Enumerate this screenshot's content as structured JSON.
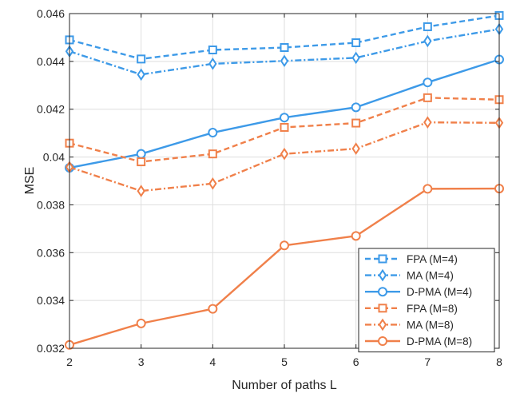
{
  "chart_data": {
    "type": "line",
    "title": "",
    "xlabel": "Number of paths L",
    "ylabel": "MSE",
    "xlim": [
      2,
      8
    ],
    "ylim": [
      0.032,
      0.046
    ],
    "grid": true,
    "legend_position": "bottom-right",
    "x": [
      2,
      3,
      4,
      5,
      6,
      7,
      8
    ],
    "x_ticks": [
      2,
      3,
      4,
      5,
      6,
      7,
      8
    ],
    "x_tick_labels": [
      "2",
      "3",
      "4",
      "5",
      "6",
      "7",
      "8"
    ],
    "y_ticks": [
      0.032,
      0.034,
      0.036,
      0.038,
      0.04,
      0.042,
      0.044,
      0.046
    ],
    "y_tick_labels": [
      "0.032",
      "0.034",
      "0.036",
      "0.038",
      "0.04",
      "0.042",
      "0.044",
      "0.046"
    ],
    "series": [
      {
        "name": "FPA (M=4)",
        "color": "#3d9ae8",
        "dash": "dashed",
        "marker": "square",
        "values": [
          0.0449,
          0.0441,
          0.04448,
          0.04458,
          0.04478,
          0.04545,
          0.04592
        ]
      },
      {
        "name": "MA (M=4)",
        "color": "#3d9ae8",
        "dash": "dashdot",
        "marker": "diamond",
        "values": [
          0.04442,
          0.04345,
          0.0439,
          0.04402,
          0.04415,
          0.04485,
          0.04535
        ]
      },
      {
        "name": "D-PMA (M=4)",
        "color": "#3d9ae8",
        "dash": "solid",
        "marker": "circle",
        "values": [
          0.03955,
          0.04013,
          0.04102,
          0.04165,
          0.04208,
          0.04312,
          0.04408
        ]
      },
      {
        "name": "FPA (M=8)",
        "color": "#f0804a",
        "dash": "dashed",
        "marker": "square",
        "values": [
          0.04058,
          0.0398,
          0.04013,
          0.04124,
          0.04142,
          0.04248,
          0.0424
        ]
      },
      {
        "name": "MA (M=8)",
        "color": "#f0804a",
        "dash": "dashdot",
        "marker": "diamond",
        "values": [
          0.03958,
          0.03858,
          0.03889,
          0.04013,
          0.04035,
          0.04145,
          0.04143
        ]
      },
      {
        "name": "D-PMA (M=8)",
        "color": "#f0804a",
        "dash": "solid",
        "marker": "circle",
        "values": [
          0.03214,
          0.03304,
          0.03365,
          0.0363,
          0.0367,
          0.03867,
          0.03868
        ]
      }
    ]
  }
}
